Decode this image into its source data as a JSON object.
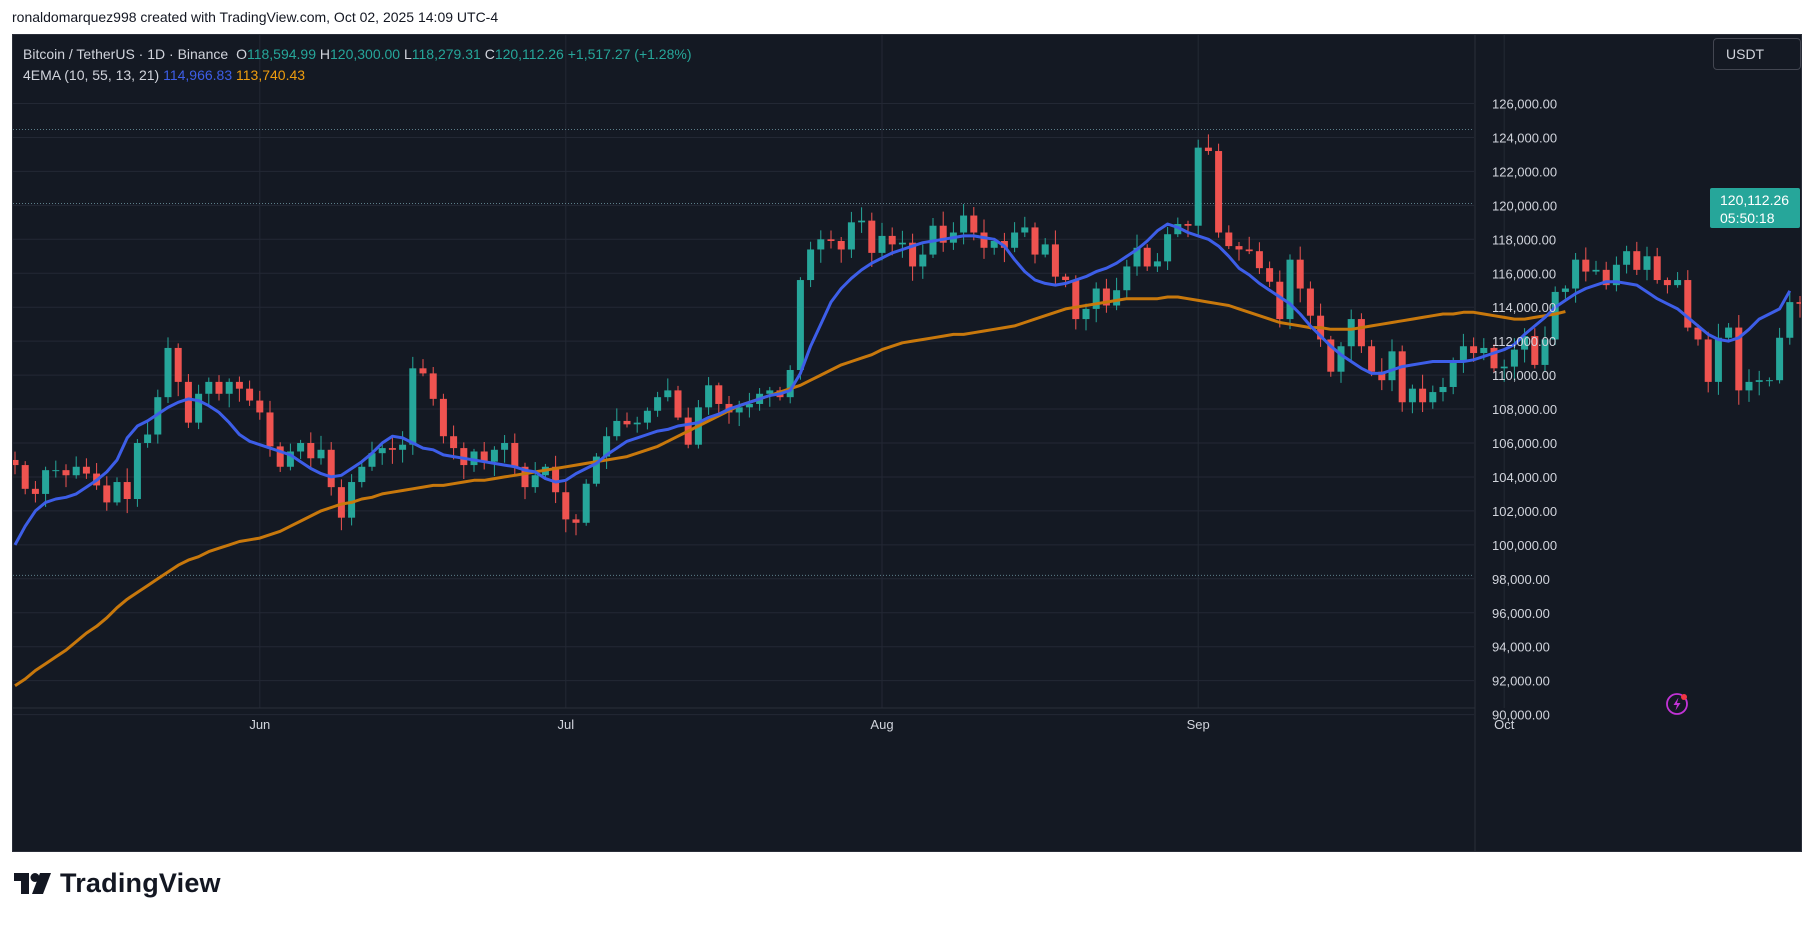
{
  "attribution": "ronaldomarquez998 created with TradingView.com, Oct 02, 2025 14:09 UTC-4",
  "legend": {
    "symbol": "Bitcoin / TetherUS · 1D · Binance",
    "open_key": "O",
    "open": "118,594.99",
    "high_key": "H",
    "high": "120,300.00",
    "low_key": "L",
    "low": "118,279.31",
    "close_key": "C",
    "close": "120,112.26",
    "change": "+1,517.27 (+1.28%)",
    "indicator": "4EMA (10, 55, 13, 21)",
    "ema_fast_value": "114,966.83",
    "ema_slow_value": "113,740.43"
  },
  "currency": "USDT",
  "price_badge": {
    "price": "120,112.26",
    "countdown": "05:50:18"
  },
  "footer_logo": "TradingView",
  "icons": {
    "alert": "lightning-alert-icon",
    "logo": "tradingview-logo-icon"
  },
  "colors": {
    "background": "#141923",
    "up": "#26a69a",
    "down": "#ef5350",
    "ema_fast": "#3d5ee8",
    "ema_slow": "#c8780c",
    "grid": "#232834",
    "text": "#d1d4dc"
  },
  "chart_data": {
    "type": "candlestick",
    "interval": "1D",
    "start_date": "2025-05-08",
    "end_date": "2025-10-02",
    "y_axis_ticks": [
      126000,
      124000,
      122000,
      120000,
      118000,
      116000,
      114000,
      112000,
      110000,
      108000,
      106000,
      104000,
      102000,
      100000,
      98000,
      96000,
      94000,
      92000,
      90000
    ],
    "y_axis_labels": [
      "126,000.00",
      "124,000.00",
      "122,000.00",
      "120,000.00",
      "118,000.00",
      "116,000.00",
      "114,000.00",
      "112,000.00",
      "110,000.00",
      "108,000.00",
      "106,000.00",
      "104,000.00",
      "102,000.00",
      "100,000.00",
      "98,000.00",
      "96,000.00",
      "94,000.00",
      "92,000.00",
      "90,000.00"
    ],
    "x_axis_labels": [
      {
        "label": "Jun",
        "date": "2025-06-01"
      },
      {
        "label": "Jul",
        "date": "2025-07-01"
      },
      {
        "label": "Aug",
        "date": "2025-08-01"
      },
      {
        "label": "Sep",
        "date": "2025-09-01"
      },
      {
        "label": "Oct",
        "date": "2025-10-01"
      }
    ],
    "reference_lines": [
      124470,
      120112,
      98200
    ],
    "closes": [
      104700,
      103300,
      103000,
      104400,
      104400,
      104100,
      104600,
      104200,
      103500,
      102500,
      103700,
      102700,
      106000,
      106500,
      108700,
      111600,
      109600,
      107200,
      108900,
      109600,
      108900,
      109600,
      109200,
      108500,
      107800,
      105800,
      104600,
      105500,
      106000,
      105100,
      105600,
      103400,
      101600,
      103700,
      104600,
      105400,
      105700,
      105600,
      105900,
      110400,
      110100,
      108600,
      106400,
      105700,
      104700,
      105500,
      104900,
      105600,
      106000,
      104600,
      103400,
      104100,
      104600,
      103100,
      101500,
      101300,
      103600,
      105200,
      106400,
      107300,
      107100,
      107200,
      107900,
      108700,
      109100,
      107500,
      105900,
      108100,
      109400,
      108300,
      107800,
      108100,
      108300,
      108900,
      109100,
      108700,
      110300,
      115600,
      117400,
      118000,
      117900,
      117400,
      119000,
      119100,
      117200,
      118200,
      117700,
      117800,
      116400,
      117100,
      118800,
      117800,
      118400,
      119400,
      118400,
      117500,
      117900,
      117500,
      118400,
      118700,
      117100,
      117700,
      115800,
      115600,
      113300,
      113900,
      115100,
      114100,
      115000,
      116400,
      117500,
      116400,
      116700,
      118300,
      118900,
      118800,
      123400,
      123200,
      118400,
      117600,
      117400,
      117300,
      116300,
      115500,
      113300,
      116800,
      115100,
      113500,
      112100,
      110200,
      111700,
      113300,
      111700,
      110200,
      109700,
      111400,
      108400,
      109200,
      108400,
      109000,
      109300,
      110800,
      111700,
      111300,
      111600,
      110400,
      110500,
      111500,
      112300,
      110600,
      112100,
      114900,
      115100,
      116800,
      116100,
      116200,
      115300,
      116500,
      117300,
      116200,
      117000,
      115600,
      115300,
      115600,
      112800,
      112100,
      109600,
      112200,
      112800,
      109100,
      109600,
      109700,
      109700,
      112200,
      114300,
      114200,
      118600,
      120112
    ],
    "ema_fast": [
      100000,
      101100,
      102000,
      102500,
      102700,
      102800,
      103000,
      103400,
      103800,
      104300,
      105000,
      106300,
      107000,
      107300,
      107700,
      108100,
      108400,
      108600,
      108500,
      108200,
      107800,
      107200,
      106500,
      106100,
      105900,
      105700,
      105500,
      105300,
      104900,
      104500,
      104200,
      104000,
      104100,
      104500,
      104900,
      105400,
      106000,
      106400,
      106300,
      106000,
      105700,
      105600,
      105300,
      105200,
      105100,
      105000,
      104900,
      104800,
      104700,
      104600,
      104400,
      104300,
      103900,
      103700,
      103800,
      104200,
      104500,
      104800,
      105300,
      105700,
      106100,
      106300,
      106500,
      106700,
      106800,
      107000,
      107100,
      107200,
      107500,
      107700,
      108000,
      108200,
      108400,
      108600,
      108800,
      108900,
      109100,
      110100,
      111700,
      113000,
      114300,
      115100,
      115700,
      116200,
      116600,
      116900,
      117200,
      117400,
      117600,
      117800,
      117900,
      118000,
      118100,
      118200,
      118200,
      118100,
      118000,
      117600,
      116800,
      116100,
      115600,
      115400,
      115300,
      115400,
      115600,
      115800,
      116100,
      116300,
      116600,
      117000,
      117400,
      117900,
      118500,
      118900,
      118700,
      118400,
      118200,
      118000,
      117600,
      117000,
      116300,
      115900,
      115400,
      115000,
      114600,
      114200,
      113600,
      112900,
      112300,
      111700,
      111200,
      110800,
      110400,
      110100,
      110100,
      110300,
      110500,
      110600,
      110700,
      110800,
      110800,
      110800,
      110800,
      110900,
      111100,
      111300,
      111500,
      111800,
      112400,
      112900,
      113400,
      114000,
      114400,
      114800,
      115100,
      115300,
      115500,
      115500,
      115400,
      115300,
      114900,
      114500,
      114200,
      113900,
      113400,
      112900,
      112400,
      112100,
      112000,
      112200,
      112700,
      113300,
      113600,
      113900,
      114966
    ],
    "ema_slow": [
      91700,
      92100,
      92600,
      93000,
      93400,
      93800,
      94300,
      94800,
      95200,
      95700,
      96300,
      96800,
      97200,
      97600,
      98000,
      98400,
      98800,
      99100,
      99300,
      99600,
      99800,
      100000,
      100200,
      100300,
      100400,
      100600,
      100800,
      101100,
      101400,
      101700,
      102000,
      102200,
      102400,
      102500,
      102700,
      102800,
      103000,
      103100,
      103200,
      103300,
      103400,
      103500,
      103500,
      103600,
      103700,
      103800,
      103800,
      103900,
      104000,
      104100,
      104200,
      104300,
      104400,
      104500,
      104600,
      104700,
      104800,
      104900,
      105000,
      105100,
      105200,
      105400,
      105600,
      105800,
      106100,
      106400,
      106700,
      107000,
      107300,
      107600,
      107900,
      108200,
      108400,
      108600,
      108800,
      109000,
      109200,
      109400,
      109700,
      110000,
      110300,
      110600,
      110800,
      111000,
      111200,
      111500,
      111700,
      111900,
      112000,
      112100,
      112200,
      112300,
      112400,
      112400,
      112500,
      112600,
      112700,
      112800,
      112900,
      113100,
      113300,
      113500,
      113700,
      113900,
      114000,
      114100,
      114200,
      114300,
      114400,
      114500,
      114500,
      114500,
      114500,
      114600,
      114600,
      114500,
      114400,
      114300,
      114200,
      114100,
      113900,
      113700,
      113500,
      113300,
      113100,
      113000,
      112900,
      112800,
      112800,
      112700,
      112700,
      112700,
      112800,
      112900,
      113000,
      113100,
      113200,
      113300,
      113400,
      113500,
      113600,
      113600,
      113700,
      113700,
      113600,
      113500,
      113400,
      113300,
      113300,
      113400,
      113500,
      113600,
      113740
    ]
  }
}
